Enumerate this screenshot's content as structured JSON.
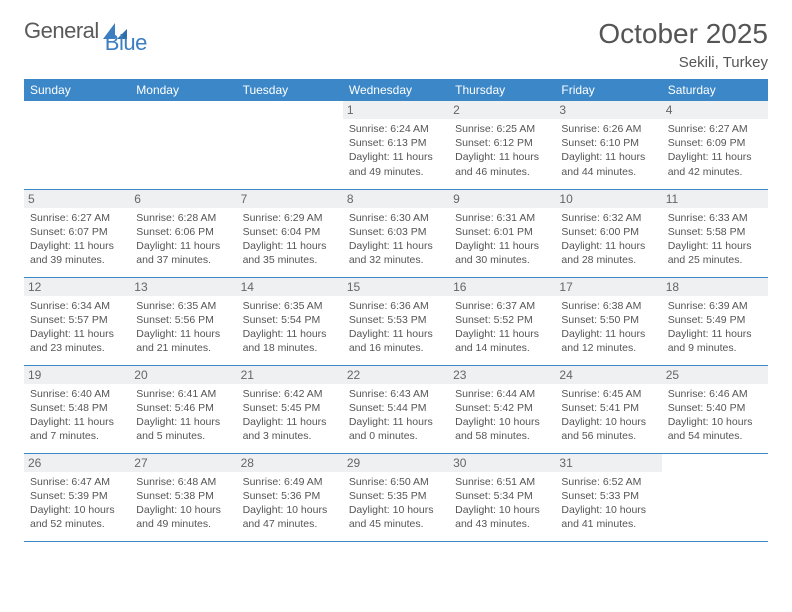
{
  "brand": {
    "part1": "General",
    "part2": "Blue"
  },
  "header": {
    "title": "October 2025",
    "location": "Sekili, Turkey"
  },
  "colors": {
    "header_bg": "#3b87c8",
    "header_text": "#ffffff",
    "daynum_bg": "#eef0f2",
    "rule": "#3b87c8",
    "text": "#555555",
    "logo_blue": "#3b7fc0"
  },
  "weekdays": [
    "Sunday",
    "Monday",
    "Tuesday",
    "Wednesday",
    "Thursday",
    "Friday",
    "Saturday"
  ],
  "weeks": [
    [
      null,
      null,
      null,
      {
        "n": "1",
        "sr": "6:24 AM",
        "ss": "6:13 PM",
        "dl": "11 hours and 49 minutes."
      },
      {
        "n": "2",
        "sr": "6:25 AM",
        "ss": "6:12 PM",
        "dl": "11 hours and 46 minutes."
      },
      {
        "n": "3",
        "sr": "6:26 AM",
        "ss": "6:10 PM",
        "dl": "11 hours and 44 minutes."
      },
      {
        "n": "4",
        "sr": "6:27 AM",
        "ss": "6:09 PM",
        "dl": "11 hours and 42 minutes."
      }
    ],
    [
      {
        "n": "5",
        "sr": "6:27 AM",
        "ss": "6:07 PM",
        "dl": "11 hours and 39 minutes."
      },
      {
        "n": "6",
        "sr": "6:28 AM",
        "ss": "6:06 PM",
        "dl": "11 hours and 37 minutes."
      },
      {
        "n": "7",
        "sr": "6:29 AM",
        "ss": "6:04 PM",
        "dl": "11 hours and 35 minutes."
      },
      {
        "n": "8",
        "sr": "6:30 AM",
        "ss": "6:03 PM",
        "dl": "11 hours and 32 minutes."
      },
      {
        "n": "9",
        "sr": "6:31 AM",
        "ss": "6:01 PM",
        "dl": "11 hours and 30 minutes."
      },
      {
        "n": "10",
        "sr": "6:32 AM",
        "ss": "6:00 PM",
        "dl": "11 hours and 28 minutes."
      },
      {
        "n": "11",
        "sr": "6:33 AM",
        "ss": "5:58 PM",
        "dl": "11 hours and 25 minutes."
      }
    ],
    [
      {
        "n": "12",
        "sr": "6:34 AM",
        "ss": "5:57 PM",
        "dl": "11 hours and 23 minutes."
      },
      {
        "n": "13",
        "sr": "6:35 AM",
        "ss": "5:56 PM",
        "dl": "11 hours and 21 minutes."
      },
      {
        "n": "14",
        "sr": "6:35 AM",
        "ss": "5:54 PM",
        "dl": "11 hours and 18 minutes."
      },
      {
        "n": "15",
        "sr": "6:36 AM",
        "ss": "5:53 PM",
        "dl": "11 hours and 16 minutes."
      },
      {
        "n": "16",
        "sr": "6:37 AM",
        "ss": "5:52 PM",
        "dl": "11 hours and 14 minutes."
      },
      {
        "n": "17",
        "sr": "6:38 AM",
        "ss": "5:50 PM",
        "dl": "11 hours and 12 minutes."
      },
      {
        "n": "18",
        "sr": "6:39 AM",
        "ss": "5:49 PM",
        "dl": "11 hours and 9 minutes."
      }
    ],
    [
      {
        "n": "19",
        "sr": "6:40 AM",
        "ss": "5:48 PM",
        "dl": "11 hours and 7 minutes."
      },
      {
        "n": "20",
        "sr": "6:41 AM",
        "ss": "5:46 PM",
        "dl": "11 hours and 5 minutes."
      },
      {
        "n": "21",
        "sr": "6:42 AM",
        "ss": "5:45 PM",
        "dl": "11 hours and 3 minutes."
      },
      {
        "n": "22",
        "sr": "6:43 AM",
        "ss": "5:44 PM",
        "dl": "11 hours and 0 minutes."
      },
      {
        "n": "23",
        "sr": "6:44 AM",
        "ss": "5:42 PM",
        "dl": "10 hours and 58 minutes."
      },
      {
        "n": "24",
        "sr": "6:45 AM",
        "ss": "5:41 PM",
        "dl": "10 hours and 56 minutes."
      },
      {
        "n": "25",
        "sr": "6:46 AM",
        "ss": "5:40 PM",
        "dl": "10 hours and 54 minutes."
      }
    ],
    [
      {
        "n": "26",
        "sr": "6:47 AM",
        "ss": "5:39 PM",
        "dl": "10 hours and 52 minutes."
      },
      {
        "n": "27",
        "sr": "6:48 AM",
        "ss": "5:38 PM",
        "dl": "10 hours and 49 minutes."
      },
      {
        "n": "28",
        "sr": "6:49 AM",
        "ss": "5:36 PM",
        "dl": "10 hours and 47 minutes."
      },
      {
        "n": "29",
        "sr": "6:50 AM",
        "ss": "5:35 PM",
        "dl": "10 hours and 45 minutes."
      },
      {
        "n": "30",
        "sr": "6:51 AM",
        "ss": "5:34 PM",
        "dl": "10 hours and 43 minutes."
      },
      {
        "n": "31",
        "sr": "6:52 AM",
        "ss": "5:33 PM",
        "dl": "10 hours and 41 minutes."
      },
      null
    ]
  ],
  "labels": {
    "sunrise": "Sunrise:",
    "sunset": "Sunset:",
    "daylight": "Daylight:"
  }
}
